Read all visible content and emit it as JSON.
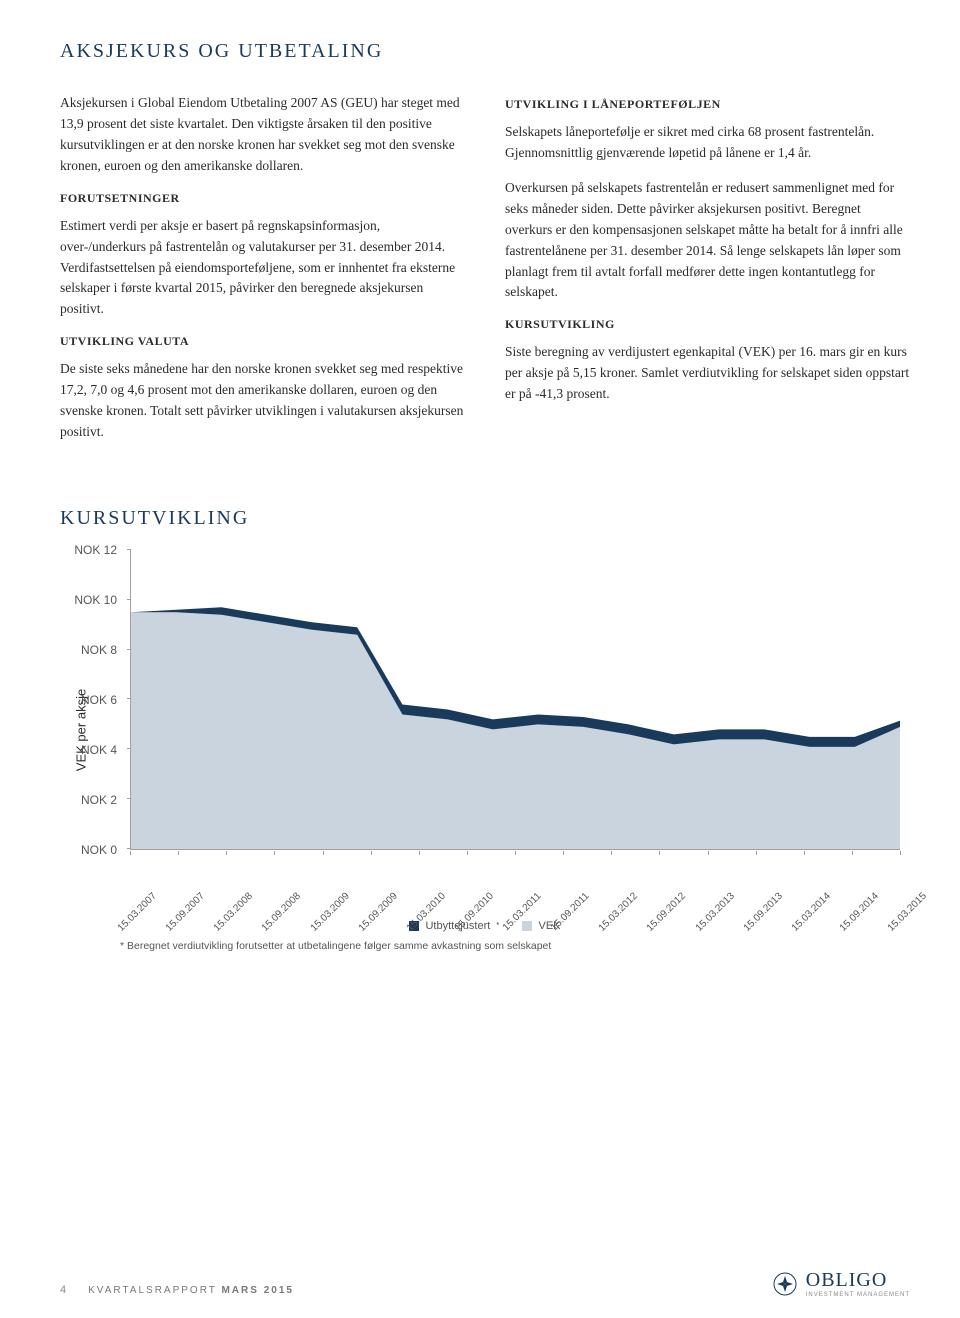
{
  "title_main": "AKSJEKURS OG UTBETALING",
  "left": {
    "p1": "Aksjekursen i Global Eiendom Utbetaling 2007 AS (GEU) har steget med 13,9 prosent det siste kvartalet. Den viktigste årsaken til den positive kursutviklingen er at den norske kronen har svekket seg mot den svenske kronen, euroen og den amerikanske dollaren.",
    "h1": "FORUTSETNINGER",
    "p2": "Estimert verdi per aksje er basert på regnskapsinformasjon, over-/underkurs på fastrentelån og valutakurser per 31. desember 2014. Verdifastsettelsen på eiendomsporteføljene, som er innhentet fra eksterne selskaper i første kvartal 2015, påvirker den beregnede aksjekursen positivt.",
    "h2": "UTVIKLING VALUTA",
    "p3": "De siste seks månedene har den norske kronen svekket seg med respektive 17,2, 7,0 og 4,6 prosent mot den amerikanske dollaren, euroen og den svenske kronen. Totalt sett påvirker utviklingen i valutakursen aksjekursen positivt."
  },
  "right": {
    "h1": "UTVIKLING I LÅNEPORTEFØLJEN",
    "p1": "Selskapets låneportefølje er sikret med cirka 68 prosent fastrentelån. Gjennomsnittlig gjenværende løpetid på lånene er 1,4 år.",
    "p2": "Overkursen på selskapets fastrentelån er redusert sammenlignet med for seks måneder siden. Dette påvirker aksjekursen positivt. Beregnet overkurs er den kompensasjonen selskapet måtte ha betalt for å innfri alle fastrentelånene per 31. desember 2014. Så lenge selskapets lån løper som planlagt frem til avtalt forfall medfører dette ingen kontantutlegg for selskapet.",
    "h2": "KURSUTVIKLING",
    "p3": "Siste beregning av verdijustert egenkapital (VEK) per 16. mars gir en kurs per aksje på 5,15 kroner. Samlet verdiutvikling for selskapet siden oppstart er på -41,3 prosent."
  },
  "chart": {
    "title": "KURSUTVIKLING",
    "y_axis_label": "VEK per aksje",
    "type": "area",
    "ylim": [
      0,
      12
    ],
    "ytick_step": 2,
    "y_ticks": [
      "NOK 0",
      "NOK 2",
      "NOK 4",
      "NOK 6",
      "NOK 8",
      "NOK 10",
      "NOK 12"
    ],
    "x_labels": [
      "15.03.2007",
      "15.09.2007",
      "15.03.2008",
      "15.09.2008",
      "15.03.2009",
      "15.09.2009",
      "15.03.2010",
      "15.09.2010",
      "15.03.2011",
      "15.09.2011",
      "15.03.2012",
      "15.09.2012",
      "15.03.2013",
      "15.09.2013",
      "15.03.2014",
      "15.09.2014",
      "15.03.2015"
    ],
    "utbyttejustert": [
      9.5,
      9.6,
      9.7,
      9.4,
      9.1,
      8.9,
      5.8,
      5.6,
      5.2,
      5.4,
      5.3,
      5.0,
      4.6,
      4.8,
      4.8,
      4.5,
      4.5,
      5.15
    ],
    "vek": [
      9.5,
      9.5,
      9.4,
      9.1,
      8.8,
      8.6,
      5.4,
      5.2,
      4.8,
      5.0,
      4.9,
      4.6,
      4.2,
      4.4,
      4.4,
      4.1,
      4.1,
      4.9
    ],
    "colors": {
      "utbyttejustert": "#1a3a5c",
      "vek_fill": "#c9d4de",
      "axis": "#a0a0a0",
      "background": "#ffffff"
    },
    "legend": {
      "a": "Utbyttejustert",
      "b": "VEK",
      "star": "*"
    },
    "footnote": "* Beregnet verdiutvikling forutsetter at utbetalingene følger samme avkastning som selskapet"
  },
  "footer": {
    "page": "4",
    "report_a": "KVARTALSRAPPORT",
    "report_b": "MARS 2015",
    "logo": "OBLIGO",
    "logo_sub": "INVESTMENT MANAGEMENT"
  }
}
